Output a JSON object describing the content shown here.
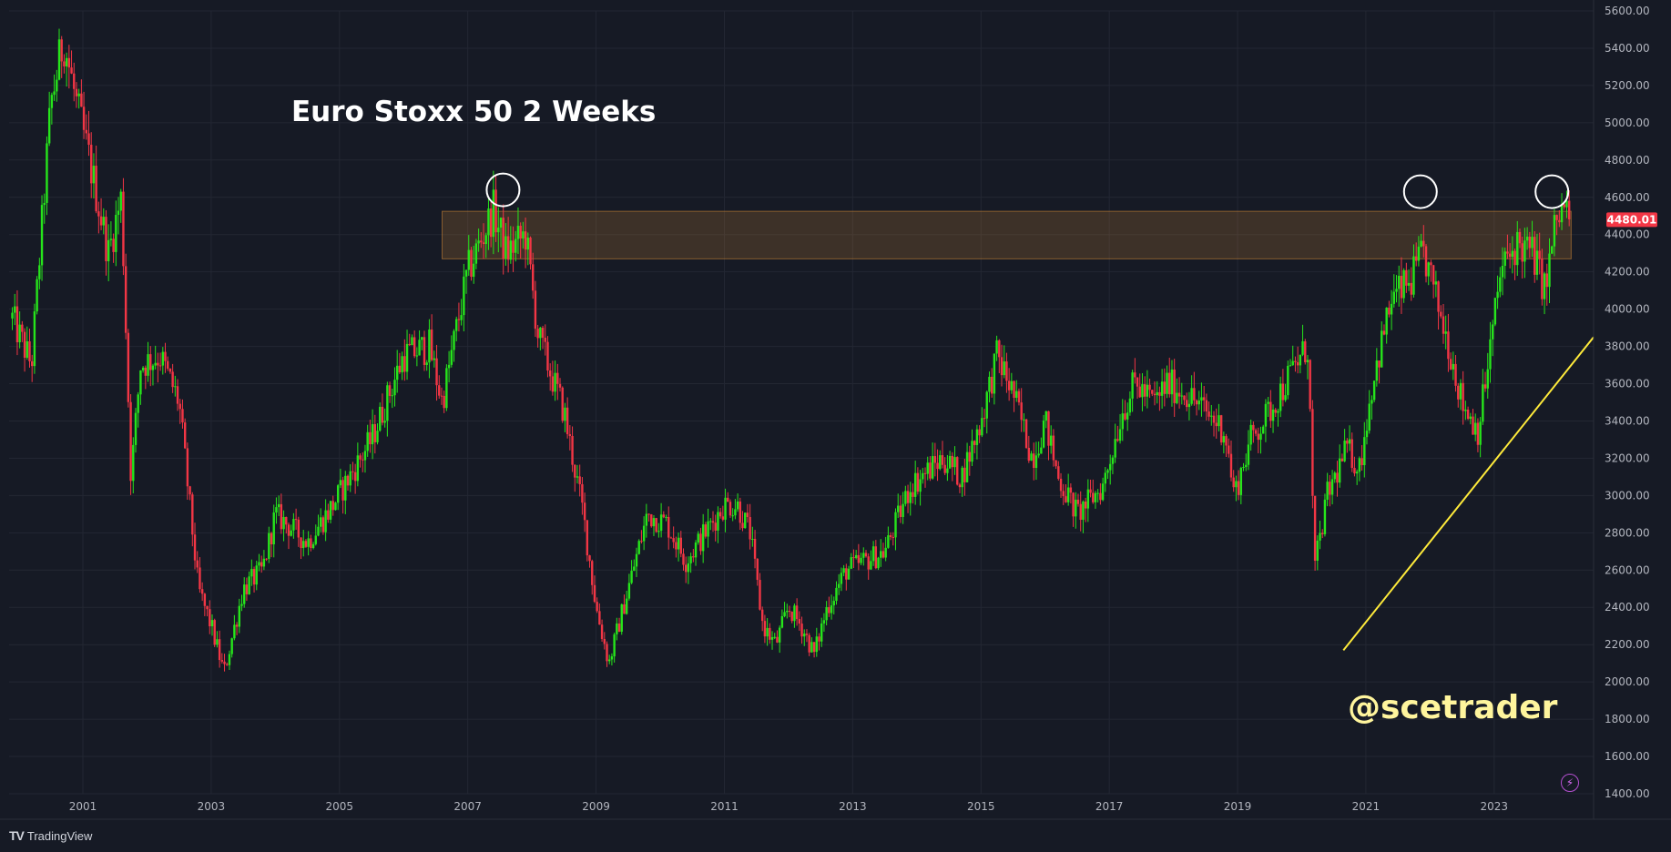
{
  "chart_data": {
    "type": "candlestick",
    "title": "Euro Stoxx 50 2 Weeks",
    "x_tick_labels": [
      "2001",
      "2003",
      "2005",
      "2007",
      "2009",
      "2011",
      "2013",
      "2015",
      "2017",
      "2019",
      "2021",
      "2023"
    ],
    "y_tick_labels": [
      "1400.00",
      "1600.00",
      "1800.00",
      "2000.00",
      "2200.00",
      "2400.00",
      "2600.00",
      "2800.00",
      "3000.00",
      "3200.00",
      "3400.00",
      "3600.00",
      "3800.00",
      "4000.00",
      "4200.00",
      "4400.00",
      "4600.00",
      "4800.00",
      "5000.00",
      "5200.00",
      "5400.00",
      "5600.00"
    ],
    "ylim": [
      1400,
      5600
    ],
    "xlim": [
      1999.85,
      2024.55
    ],
    "grid": true,
    "last_price": "4480.01",
    "up_color": "#26e51b",
    "down_color": "#f23645",
    "path": [
      [
        1999.9,
        3950
      ],
      [
        2000.2,
        3700
      ],
      [
        2000.5,
        5100
      ],
      [
        2000.7,
        5450
      ],
      [
        2000.9,
        5100
      ],
      [
        2001.1,
        4800
      ],
      [
        2001.4,
        4300
      ],
      [
        2001.6,
        4600
      ],
      [
        2001.75,
        3100
      ],
      [
        2001.9,
        3700
      ],
      [
        2002.2,
        3750
      ],
      [
        2002.5,
        3500
      ],
      [
        2002.8,
        2500
      ],
      [
        2003.0,
        2300
      ],
      [
        2003.2,
        2050
      ],
      [
        2003.5,
        2500
      ],
      [
        2003.8,
        2600
      ],
      [
        2004.0,
        2900
      ],
      [
        2004.5,
        2750
      ],
      [
        2004.9,
        2950
      ],
      [
        2005.5,
        3300
      ],
      [
        2006.0,
        3750
      ],
      [
        2006.4,
        3800
      ],
      [
        2006.6,
        3500
      ],
      [
        2007.0,
        4200
      ],
      [
        2007.4,
        4530
      ],
      [
        2007.6,
        4300
      ],
      [
        2007.9,
        4400
      ],
      [
        2008.1,
        3850
      ],
      [
        2008.5,
        3450
      ],
      [
        2008.8,
        2900
      ],
      [
        2009.0,
        2400
      ],
      [
        2009.2,
        2100
      ],
      [
        2009.5,
        2500
      ],
      [
        2009.8,
        2900
      ],
      [
        2010.1,
        2850
      ],
      [
        2010.4,
        2650
      ],
      [
        2010.7,
        2800
      ],
      [
        2011.0,
        2950
      ],
      [
        2011.2,
        2950
      ],
      [
        2011.4,
        2800
      ],
      [
        2011.6,
        2300
      ],
      [
        2011.8,
        2200
      ],
      [
        2012.0,
        2400
      ],
      [
        2012.2,
        2300
      ],
      [
        2012.4,
        2150
      ],
      [
        2012.6,
        2400
      ],
      [
        2012.9,
        2600
      ],
      [
        2013.2,
        2650
      ],
      [
        2013.5,
        2700
      ],
      [
        2013.9,
        3050
      ],
      [
        2014.4,
        3200
      ],
      [
        2014.7,
        3100
      ],
      [
        2015.0,
        3400
      ],
      [
        2015.25,
        3750
      ],
      [
        2015.5,
        3550
      ],
      [
        2015.8,
        3200
      ],
      [
        2016.0,
        3400
      ],
      [
        2016.2,
        3100
      ],
      [
        2016.5,
        2900
      ],
      [
        2016.9,
        3050
      ],
      [
        2017.2,
        3450
      ],
      [
        2017.4,
        3600
      ],
      [
        2017.7,
        3500
      ],
      [
        2017.9,
        3600
      ],
      [
        2018.2,
        3550
      ],
      [
        2018.5,
        3450
      ],
      [
        2018.8,
        3350
      ],
      [
        2018.95,
        3000
      ],
      [
        2019.2,
        3300
      ],
      [
        2019.5,
        3450
      ],
      [
        2019.9,
        3700
      ],
      [
        2020.1,
        3800
      ],
      [
        2020.2,
        2600
      ],
      [
        2020.4,
        3000
      ],
      [
        2020.7,
        3250
      ],
      [
        2020.9,
        3150
      ],
      [
        2021.1,
        3600
      ],
      [
        2021.4,
        4050
      ],
      [
        2021.7,
        4150
      ],
      [
        2021.9,
        4300
      ],
      [
        2022.1,
        4050
      ],
      [
        2022.3,
        3800
      ],
      [
        2022.5,
        3500
      ],
      [
        2022.75,
        3350
      ],
      [
        2022.9,
        3700
      ],
      [
        2023.1,
        4200
      ],
      [
        2023.35,
        4350
      ],
      [
        2023.6,
        4300
      ],
      [
        2023.8,
        4100
      ],
      [
        2023.95,
        4450
      ],
      [
        2024.1,
        4550
      ],
      [
        2024.2,
        4480
      ]
    ],
    "annotations": {
      "resistance_zone": {
        "y_range": [
          4270,
          4525
        ],
        "x_range": [
          2006.6,
          2024.2
        ],
        "color": "#c98436"
      },
      "circles": [
        {
          "x": 2007.55,
          "y": 4640
        },
        {
          "x": 2021.85,
          "y": 4630
        },
        {
          "x": 2023.9,
          "y": 4630
        }
      ],
      "trendline": {
        "from": [
          2020.65,
          2170
        ],
        "to": [
          2024.55,
          3850
        ],
        "color": "#ffeb3b"
      }
    }
  },
  "watermark": "@scetrader",
  "brand": {
    "name": "TradingView",
    "logo": "TV"
  }
}
